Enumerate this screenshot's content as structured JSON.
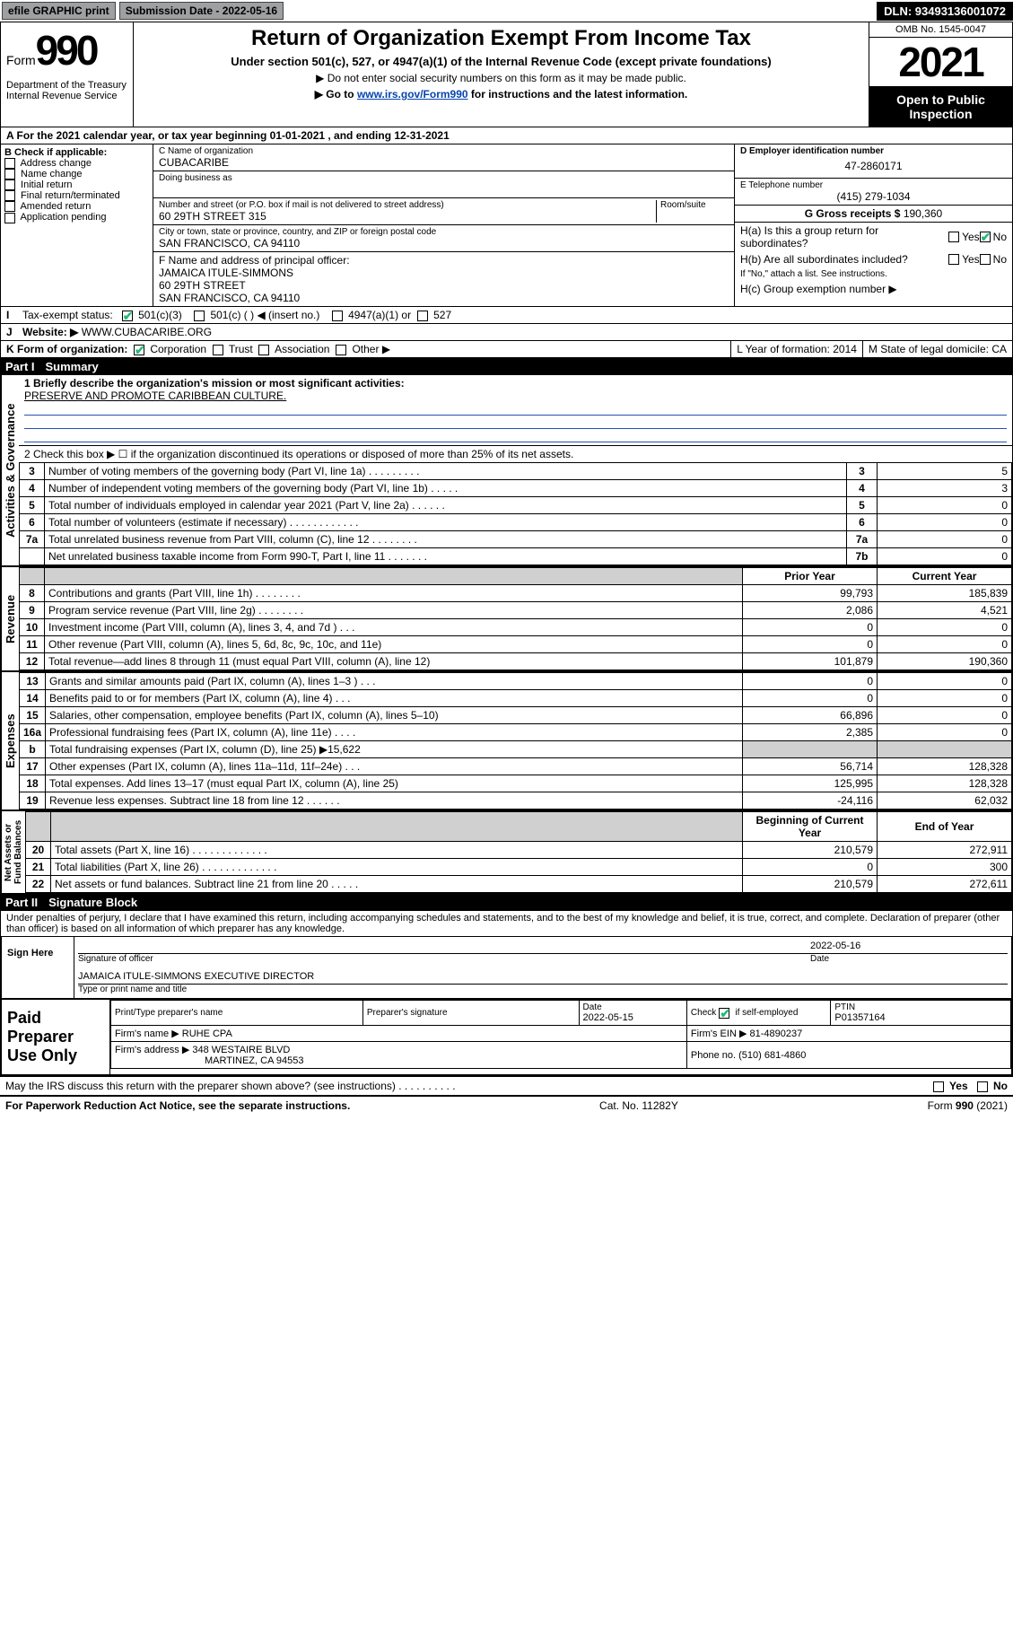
{
  "topbar": {
    "efile": "efile GRAPHIC print",
    "sub_label": "Submission Date - 2022-05-16",
    "dln": "DLN: 93493136001072"
  },
  "header": {
    "form_word": "Form",
    "form_num": "990",
    "dept": "Department of the Treasury Internal Revenue Service",
    "title": "Return of Organization Exempt From Income Tax",
    "sub1": "Under section 501(c), 527, or 4947(a)(1) of the Internal Revenue Code (except private foundations)",
    "sub2": "▶ Do not enter social security numbers on this form as it may be made public.",
    "sub3_pre": "▶ Go to ",
    "sub3_link": "www.irs.gov/Form990",
    "sub3_post": " for instructions and the latest information.",
    "omb": "OMB No. 1545-0047",
    "year": "2021",
    "open": "Open to Public Inspection"
  },
  "period": {
    "a_text": "A For the 2021 calendar year, or tax year beginning 01-01-2021    , and ending 12-31-2021"
  },
  "sectionB": {
    "label": "B Check if applicable:",
    "opts": [
      "Address change",
      "Name change",
      "Initial return",
      "Final return/terminated",
      "Amended return",
      "Application pending"
    ]
  },
  "sectionC": {
    "name_label": "C Name of organization",
    "name": "CUBACARIBE",
    "dba_label": "Doing business as",
    "addr_label": "Number and street (or P.O. box if mail is not delivered to street address)",
    "room_label": "Room/suite",
    "addr": "60 29TH STREET 315",
    "city_label": "City or town, state or province, country, and ZIP or foreign postal code",
    "city": "SAN FRANCISCO, CA  94110",
    "officer_label": "F Name and address of principal officer:",
    "officer_name": "JAMAICA ITULE-SIMMONS",
    "officer_addr1": "60 29TH STREET",
    "officer_addr2": "SAN FRANCISCO, CA  94110"
  },
  "rightinfo": {
    "d_label": "D Employer identification number",
    "ein": "47-2860171",
    "e_label": "E Telephone number",
    "phone": "(415) 279-1034",
    "g_label": "G Gross receipts $ ",
    "gross": "190,360",
    "ha_label": "H(a)  Is this a group return for subordinates?",
    "hb_label": "H(b)  Are all subordinates included?",
    "hb_note": "If \"No,\" attach a list. See instructions.",
    "hc_label": "H(c)  Group exemption number ▶"
  },
  "rowI": {
    "label": "I",
    "tax": "Tax-exempt status:",
    "c3": "501(c)(3)",
    "c": "501(c) (  ) ◀ (insert no.)",
    "a1": "4947(a)(1) or",
    "s527": "527"
  },
  "rowJ": {
    "label": "J",
    "web": "Website: ▶",
    "url": "WWW.CUBACARIBE.ORG"
  },
  "rowK": {
    "label": "K Form of organization:",
    "corp": "Corporation",
    "trust": "Trust",
    "assoc": "Association",
    "other": "Other ▶",
    "L": "L Year of formation: 2014",
    "M": "M State of legal domicile: CA"
  },
  "part1": {
    "title": "Part I",
    "sub": "Summary",
    "line1_label": "1   Briefly describe the organization's mission or most significant activities:",
    "mission": "PRESERVE AND PROMOTE CARIBBEAN CULTURE.",
    "line2": "2   Check this box ▶ ☐  if the organization discontinued its operations or disposed of more than 25% of its net assets."
  },
  "gov_lines": [
    {
      "n": "3",
      "t": "Number of voting members of the governing body (Part VI, line 1a)   .    .    .    .    .    .    .    .    .",
      "b": "3",
      "v": "5"
    },
    {
      "n": "4",
      "t": "Number of independent voting members of the governing body (Part VI, line 1b)    .    .    .    .    .",
      "b": "4",
      "v": "3"
    },
    {
      "n": "5",
      "t": "Total number of individuals employed in calendar year 2021 (Part V, line 2a)   .    .    .    .    .    .",
      "b": "5",
      "v": "0"
    },
    {
      "n": "6",
      "t": "Total number of volunteers (estimate if necessary)    .    .    .    .    .    .    .    .    .    .    .    .",
      "b": "6",
      "v": "0"
    },
    {
      "n": "7a",
      "t": "Total unrelated business revenue from Part VIII, column (C), line 12    .    .    .    .    .    .    .    .",
      "b": "7a",
      "v": "0"
    },
    {
      "n": "",
      "t": "Net unrelated business taxable income from Form 990-T, Part I, line 11    .    .    .    .    .    .    .",
      "b": "7b",
      "v": "0"
    }
  ],
  "two_col_hdr": {
    "py": "Prior Year",
    "cy": "Current Year"
  },
  "rev_lines": [
    {
      "n": "8",
      "t": "Contributions and grants (Part VIII, line 1h)    .    .    .    .    .    .    .    .",
      "py": "99,793",
      "cy": "185,839"
    },
    {
      "n": "9",
      "t": "Program service revenue (Part VIII, line 2g)    .    .    .    .    .    .    .    .",
      "py": "2,086",
      "cy": "4,521"
    },
    {
      "n": "10",
      "t": "Investment income (Part VIII, column (A), lines 3, 4, and 7d )    .    .    .",
      "py": "0",
      "cy": "0"
    },
    {
      "n": "11",
      "t": "Other revenue (Part VIII, column (A), lines 5, 6d, 8c, 9c, 10c, and 11e)",
      "py": "0",
      "cy": "0"
    },
    {
      "n": "12",
      "t": "Total revenue—add lines 8 through 11 (must equal Part VIII, column (A), line 12)",
      "py": "101,879",
      "cy": "190,360"
    }
  ],
  "exp_lines": [
    {
      "n": "13",
      "t": "Grants and similar amounts paid (Part IX, column (A), lines 1–3 )    .    .    .",
      "py": "0",
      "cy": "0"
    },
    {
      "n": "14",
      "t": "Benefits paid to or for members (Part IX, column (A), line 4)    .    .    .",
      "py": "0",
      "cy": "0"
    },
    {
      "n": "15",
      "t": "Salaries, other compensation, employee benefits (Part IX, column (A), lines 5–10)",
      "py": "66,896",
      "cy": "0"
    },
    {
      "n": "16a",
      "t": "Professional fundraising fees (Part IX, column (A), line 11e)    .    .    .    .",
      "py": "2,385",
      "cy": "0"
    },
    {
      "n": "b",
      "t": "Total fundraising expenses (Part IX, column (D), line 25) ▶15,622",
      "py": "SHADE",
      "cy": "SHADE"
    },
    {
      "n": "17",
      "t": "Other expenses (Part IX, column (A), lines 11a–11d, 11f–24e)    .    .    .",
      "py": "56,714",
      "cy": "128,328"
    },
    {
      "n": "18",
      "t": "Total expenses. Add lines 13–17 (must equal Part IX, column (A), line 25)",
      "py": "125,995",
      "cy": "128,328"
    },
    {
      "n": "19",
      "t": "Revenue less expenses. Subtract line 18 from line 12    .    .    .    .    .    .",
      "py": "-24,116",
      "cy": "62,032"
    }
  ],
  "na_hdr": {
    "py": "Beginning of Current Year",
    "cy": "End of Year"
  },
  "na_lines": [
    {
      "n": "20",
      "t": "Total assets (Part X, line 16)    .    .    .    .    .    .    .    .    .    .    .    .    .",
      "py": "210,579",
      "cy": "272,911"
    },
    {
      "n": "21",
      "t": "Total liabilities (Part X, line 26)    .    .    .    .    .    .    .    .    .    .    .    .    .",
      "py": "0",
      "cy": "300"
    },
    {
      "n": "22",
      "t": "Net assets or fund balances. Subtract line 21 from line 20    .    .    .    .    .",
      "py": "210,579",
      "cy": "272,611"
    }
  ],
  "part2": {
    "title": "Part II",
    "sub": "Signature Block",
    "perjury": "Under penalties of perjury, I declare that I have examined this return, including accompanying schedules and statements, and to the best of my knowledge and belief, it is true, correct, and complete. Declaration of preparer (other than officer) is based on all information of which preparer has any knowledge."
  },
  "sign": {
    "label": "Sign Here",
    "sig_label": "Signature of officer",
    "date": "2022-05-16",
    "date_label": "Date",
    "name_title": "JAMAICA ITULE-SIMMONS  EXECUTIVE DIRECTOR",
    "name_label": "Type or print name and title"
  },
  "preparer": {
    "label": "Paid Preparer Use Only",
    "h1": "Print/Type preparer's name",
    "h2": "Preparer's signature",
    "h3": "Date",
    "date": "2022-05-15",
    "h4_pre": "Check",
    "h4_post": "if self-employed",
    "h5": "PTIN",
    "ptin": "P01357164",
    "firm_label": "Firm's name    ▶",
    "firm": "RUHE CPA",
    "ein_label": "Firm's EIN ▶",
    "ein": "81-4890237",
    "addr_label": "Firm's address ▶",
    "addr1": "348 WESTAIRE BLVD",
    "addr2": "MARTINEZ, CA  94553",
    "phone_label": "Phone no.",
    "phone": "(510) 681-4860"
  },
  "footer": {
    "discuss": "May the IRS discuss this return with the preparer shown above? (see instructions)    .    .    .    .    .    .    .    .    .    .",
    "yes": "Yes",
    "no": "No",
    "paperwork": "For Paperwork Reduction Act Notice, see the separate instructions.",
    "cat": "Cat. No. 11282Y",
    "formref": "Form 990 (2021)"
  }
}
